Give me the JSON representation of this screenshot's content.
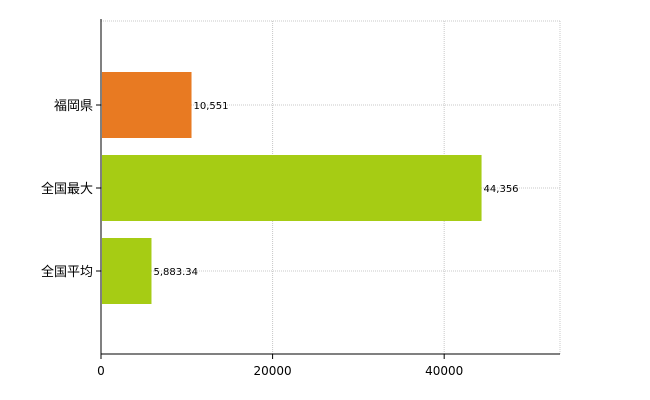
{
  "chart_data": {
    "type": "bar",
    "orientation": "horizontal",
    "categories": [
      "福岡県",
      "全国最大",
      "全国平均"
    ],
    "values": [
      10551,
      44356,
      5883.34
    ],
    "value_labels": [
      "10,551",
      "44,356",
      "5,883.34"
    ],
    "bar_colors": [
      "#e87a22",
      "#a6cc14",
      "#a6cc14"
    ],
    "xlim": [
      0,
      53500
    ],
    "x_ticks": [
      0,
      20000,
      40000
    ],
    "x_tick_labels": [
      "0",
      "20000",
      "40000"
    ],
    "grid": true,
    "title": "",
    "xlabel": "",
    "ylabel": ""
  }
}
